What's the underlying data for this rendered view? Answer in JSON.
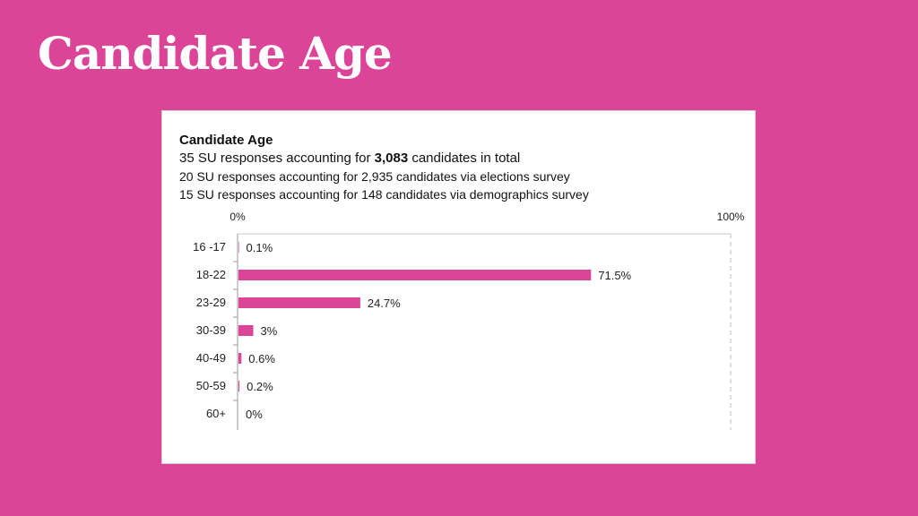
{
  "slide": {
    "title": "Candidate Age"
  },
  "chart_header": {
    "title": "Candidate Age",
    "line1_prefix": "35 SU responses accounting for ",
    "line1_bold": "3,083",
    "line1_suffix": " candidates in total",
    "line2": "20 SU responses accounting for 2,935 candidates via elections survey",
    "line3": "15 SU responses accounting for 148 candidates via demographics survey"
  },
  "colors": {
    "background": "#dc4597",
    "bar": "#dc4597"
  },
  "chart_data": {
    "type": "bar",
    "orientation": "horizontal",
    "categories": [
      "16 -17",
      "18-22",
      "23-29",
      "30-39",
      "40-49",
      "50-59",
      "60+"
    ],
    "values": [
      0.1,
      71.5,
      24.7,
      3,
      0.6,
      0.2,
      0
    ],
    "data_labels": [
      "0.1%",
      "71.5%",
      "24.7%",
      "3%",
      "0.6%",
      "0.2%",
      "0%"
    ],
    "xlim": [
      0,
      100
    ],
    "axis_labels": {
      "min": "0%",
      "max": "100%"
    },
    "grid": false
  }
}
